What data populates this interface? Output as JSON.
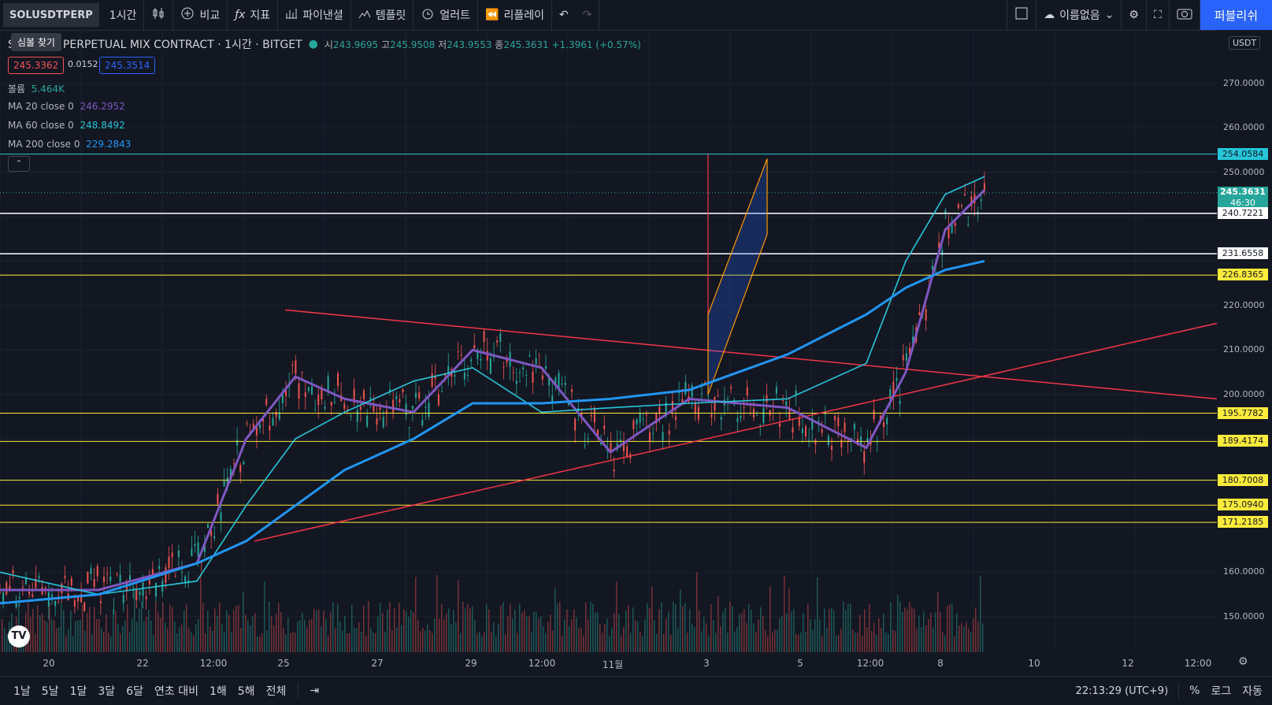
{
  "toolbar": {
    "symbol": "SOLUSDTPERP",
    "interval": "1시간",
    "compare": "비교",
    "indicators": "지표",
    "financials": "파이낸셜",
    "templates": "템플릿",
    "alert": "얼러트",
    "replay": "리플레이",
    "layout_name": "이름없음",
    "publish": "퍼블리쉬"
  },
  "tooltip": "심볼 찾기",
  "header": {
    "title": "SOLUSDT PERPETUAL MIX CONTRACT · 1시간 · BITGET",
    "open_label": "시",
    "open": "243.9695",
    "high_label": "고",
    "high": "245.9508",
    "low_label": "저",
    "low": "243.9553",
    "close_label": "종",
    "close": "245.3631",
    "change": "+1.3961 (+0.57%)"
  },
  "quotes": {
    "sell": "245.3362",
    "spread": "0.0152",
    "buy": "245.3514"
  },
  "legend": {
    "volume_label": "볼륨",
    "volume": "5.464K",
    "ma20_label": "MA 20 close 0",
    "ma20": "246.2952",
    "ma60_label": "MA 60 close 0",
    "ma60": "248.8492",
    "ma200_label": "MA 200 close 0",
    "ma200": "229.2843"
  },
  "price_axis": {
    "currency": "USDT",
    "labels": [
      "270.0000",
      "260.0000",
      "250.0000",
      "220.0000",
      "210.0000",
      "200.0000",
      "160.0000",
      "150.0000"
    ],
    "tags": [
      {
        "value": "254.0584",
        "color": "#26c6da"
      },
      {
        "value": "245.3631",
        "color": "#26a69a"
      },
      {
        "value": "240.7221",
        "color": "#ffffff"
      },
      {
        "value": "231.6558",
        "color": "#ffffff"
      },
      {
        "value": "226.8365",
        "color": "#ffeb3b"
      },
      {
        "value": "195.7782",
        "color": "#ffeb3b"
      },
      {
        "value": "189.4174",
        "color": "#ffeb3b"
      },
      {
        "value": "180.7008",
        "color": "#ffeb3b"
      },
      {
        "value": "175.0940",
        "color": "#ffeb3b"
      },
      {
        "value": "171.2185",
        "color": "#ffeb3b"
      }
    ],
    "countdown": "46:30"
  },
  "time_axis": [
    "20",
    "22",
    "12:00",
    "25",
    "27",
    "29",
    "12:00",
    "11월",
    "3",
    "5",
    "12:00",
    "8",
    "10",
    "12",
    "12:00"
  ],
  "bottombar": {
    "ranges": [
      "1날",
      "5날",
      "1달",
      "3달",
      "6달",
      "연초 대비",
      "1해",
      "5해",
      "전체"
    ],
    "clock": "22:13:29 (UTC+9)",
    "percent": "%",
    "log": "로그",
    "auto": "자동"
  },
  "chart_data": {
    "type": "line",
    "title": "SOLUSDT PERPETUAL MIX CONTRACT",
    "ylim": [
      142,
      282
    ],
    "series": [
      {
        "name": "MA 20 close 0",
        "color": "#7e57c2",
        "x": [
          0,
          10,
          20,
          25,
          30,
          35,
          42,
          48,
          55,
          62,
          70,
          80,
          88,
          92,
          96,
          100
        ],
        "values": [
          156,
          156,
          162,
          190,
          204,
          199,
          196,
          210,
          206,
          187,
          199,
          197,
          188,
          205,
          237,
          246
        ]
      },
      {
        "name": "MA 60 close 0",
        "color": "#26c6da",
        "x": [
          0,
          10,
          20,
          25,
          30,
          35,
          42,
          48,
          55,
          62,
          70,
          80,
          88,
          92,
          96,
          100
        ],
        "values": [
          160,
          155,
          158,
          175,
          190,
          196,
          203,
          206,
          196,
          197,
          198,
          199,
          207,
          230,
          245,
          249
        ]
      },
      {
        "name": "MA 200 close 0",
        "color": "#2196f3",
        "x": [
          0,
          10,
          20,
          25,
          30,
          35,
          42,
          48,
          55,
          62,
          70,
          80,
          88,
          92,
          96,
          100
        ],
        "values": [
          153,
          155,
          162,
          167,
          175,
          183,
          190,
          198,
          198,
          199,
          201,
          209,
          218,
          224,
          228,
          230
        ]
      }
    ]
  },
  "colors": {
    "up": "#26a69a",
    "down": "#ef5350",
    "accent": "#2962ff",
    "trend": "#f23645",
    "channel": "#ff9800"
  }
}
